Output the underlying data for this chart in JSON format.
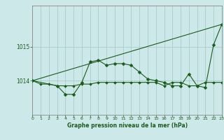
{
  "bg_color": "#cce8e8",
  "grid_color": "#aacccc",
  "line_color": "#1a5c1a",
  "title": "Graphe pression niveau de la mer (hPa)",
  "xlim": [
    0,
    23
  ],
  "ylim": [
    1013.0,
    1016.2
  ],
  "yticks": [
    1014,
    1015
  ],
  "xticks": [
    0,
    1,
    2,
    3,
    4,
    5,
    6,
    7,
    8,
    9,
    10,
    11,
    12,
    13,
    14,
    15,
    16,
    17,
    18,
    19,
    20,
    21,
    22,
    23
  ],
  "series_flat": {
    "x": [
      0,
      1,
      2,
      3,
      4,
      5,
      6,
      7,
      8,
      9,
      10,
      11,
      12,
      13,
      14,
      15,
      16,
      17,
      18,
      19,
      20,
      21,
      22,
      23
    ],
    "y": [
      1014.0,
      1013.9,
      1013.9,
      1013.85,
      1013.85,
      1013.85,
      1013.9,
      1013.9,
      1013.95,
      1013.95,
      1013.95,
      1013.95,
      1013.95,
      1013.95,
      1013.95,
      1013.95,
      1013.85,
      1013.95,
      1013.95,
      1013.85,
      1013.85,
      1013.95,
      1013.95,
      1013.95
    ]
  },
  "series_main": {
    "x": [
      0,
      3,
      4,
      5,
      6,
      7,
      8,
      9,
      10,
      11,
      12,
      13,
      14,
      15,
      16,
      17,
      18,
      19,
      20,
      21,
      22,
      23
    ],
    "y": [
      1014.0,
      1013.85,
      1013.6,
      1013.6,
      1013.95,
      1014.55,
      1014.6,
      1014.45,
      1014.5,
      1014.5,
      1014.45,
      1014.25,
      1014.05,
      1014.0,
      1013.95,
      1013.85,
      1013.85,
      1014.2,
      1013.85,
      1013.8,
      1015.05,
      1015.65
    ]
  },
  "series_trend": {
    "x": [
      0,
      23
    ],
    "y": [
      1014.0,
      1015.65
    ]
  }
}
